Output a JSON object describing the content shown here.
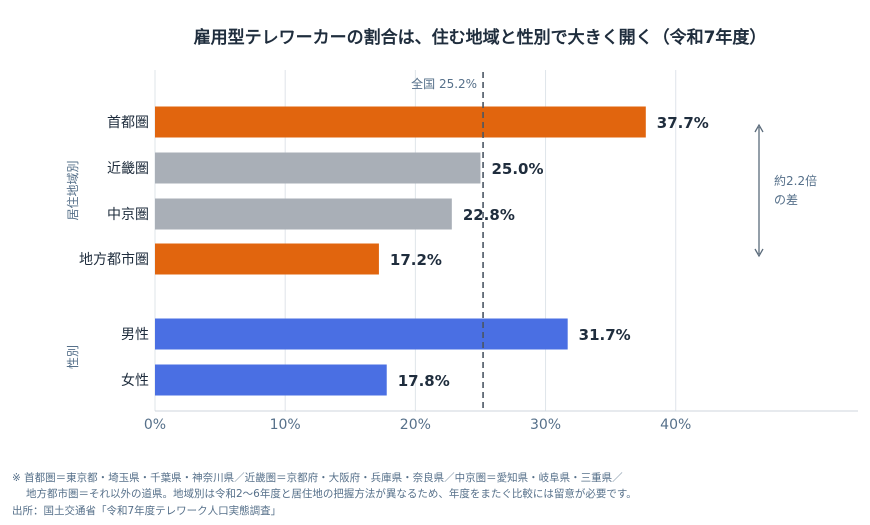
{
  "chart_data": {
    "type": "bar",
    "orientation": "horizontal",
    "title": "雇用型テレワーカーの割合は、住む地域と性別で大きく開く（令和7年度）",
    "groups": [
      {
        "label": "居住地域別",
        "items": [
          {
            "category": "首都圏",
            "value": 37.7,
            "label": "37.7%",
            "color": "#e1650e"
          },
          {
            "category": "近畿圏",
            "value": 25.0,
            "label": "25.0%",
            "color": "#a9afb7"
          },
          {
            "category": "中京圏",
            "value": 22.8,
            "label": "22.8%",
            "color": "#a9afb7"
          },
          {
            "category": "地方都市圏",
            "value": 17.2,
            "label": "17.2%",
            "color": "#e1650e"
          }
        ]
      },
      {
        "label": "性別",
        "items": [
          {
            "category": "男性",
            "value": 31.7,
            "label": "31.7%",
            "color": "#4a6fe3"
          },
          {
            "category": "女性",
            "value": 17.8,
            "label": "17.8%",
            "color": "#4a6fe3"
          }
        ]
      }
    ],
    "xlim": [
      0,
      54
    ],
    "xticks": [
      {
        "value": 0,
        "label": "0%"
      },
      {
        "value": 10,
        "label": "10%"
      },
      {
        "value": 20,
        "label": "20%"
      },
      {
        "value": 30,
        "label": "30%"
      },
      {
        "value": 40,
        "label": "40%"
      }
    ],
    "reference_line": {
      "value": 25.2,
      "label": "全国 25.2%"
    },
    "annotation": {
      "lines": [
        "約2.2倍",
        "の差"
      ]
    },
    "grid": true,
    "footnotes": [
      "※ 首都圏＝東京都・埼玉県・千葉県・神奈川県／近畿圏＝京都府・大阪府・兵庫県・奈良県／中京圏＝愛知県・岐阜県・三重県／",
      "地方都市圏＝それ以外の道県。地域別は令和2〜6年度と居住地の把握方法が異なるため、年度をまたぐ比較には留意が必要です。",
      "出所：国土交通省「令和7年度テレワーク人口実態調査」"
    ]
  },
  "colors": {
    "grid": "#dfe4ea",
    "axis": "#cfd6de",
    "reference": "#4a5663",
    "arrow": "#5b6b7b"
  }
}
